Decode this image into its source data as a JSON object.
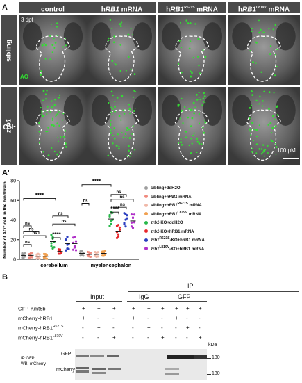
{
  "panelA": {
    "letter": "A",
    "columns": [
      {
        "pre": "",
        "italic": "",
        "sup": "",
        "post": "control"
      },
      {
        "pre": "h",
        "italic": "RB1",
        "sup": "",
        "post": " mRNA"
      },
      {
        "pre": "h",
        "italic": "RB1",
        "sup": "R621S",
        "post": " mRNA"
      },
      {
        "pre": "h",
        "italic": "RB1",
        "sup": "L819V",
        "post": " mRNA"
      }
    ],
    "rows": [
      {
        "italic": "",
        "post": "sibling"
      },
      {
        "italic": "zrb1",
        "post": "-KO"
      }
    ],
    "stage": "3 dpf",
    "stain": "AO",
    "scalebar": "100 μM",
    "colors": {
      "header_bg": "#4a4a4a",
      "ao_green": "#33dd33"
    }
  },
  "panelA2": {
    "letter": "A'",
    "chart_data": {
      "type": "scatter",
      "ylabel": "Number of AO⁺ cell  in the hindbrain",
      "ylim": [
        0,
        80
      ],
      "yticks": [
        0,
        20,
        40,
        60,
        80
      ],
      "categories": [
        "cerebellum",
        "myelencephalon"
      ],
      "significance": [
        {
          "label": "****"
        },
        {
          "label": "ns"
        },
        {
          "label": "ns"
        },
        {
          "label": "ns"
        },
        {
          "label": "****"
        },
        {
          "label": "ns"
        },
        {
          "label": "ns"
        },
        {
          "label": "ns"
        },
        {
          "label": "****"
        },
        {
          "label": "ns"
        },
        {
          "label": "****"
        },
        {
          "label": "ns"
        },
        {
          "label": "ns"
        },
        {
          "label": "ns"
        }
      ],
      "series": [
        {
          "name": "sibling+ddH2O",
          "name_pre": "sibling+ddH2O",
          "name_sup": "",
          "name_post": "",
          "color": "#9e9e9e",
          "values": [
            4,
            6
          ]
        },
        {
          "name": "sibling+hRB1 mRNA",
          "name_pre": "sibling+h",
          "name_it": "RB1",
          "name_sup": "",
          "name_post": " mRNA",
          "color": "#f08a7e",
          "values": [
            4,
            5
          ]
        },
        {
          "name": "sibling+hRB1R621S mRNA",
          "name_pre": "sibling+h",
          "name_it": "RB1",
          "name_sup": "R621S",
          "name_post": " mRNA",
          "color": "#f0b8a8",
          "values": [
            3,
            5
          ]
        },
        {
          "name": "sibling+hRB1L819V mRNA",
          "name_pre": "sibling+h",
          "name_it": "RB1",
          "name_sup": "L819V",
          "name_post": " mRNA",
          "color": "#f0a050",
          "values": [
            3,
            6
          ]
        },
        {
          "name": "zrb1-KO+ddH2O",
          "name_pre": "",
          "name_it": "zrb1",
          "name_sup": "",
          "name_post": "-KO+ddH2O",
          "color": "#27b84a",
          "values": [
            18,
            41
          ]
        },
        {
          "name": "zrb1-KO+hRB1 mRNA",
          "name_pre": "",
          "name_it": "zrb1",
          "name_sup": "",
          "name_post": "-KO+hRB1 mRNA",
          "color": "#e8262a",
          "values": [
            8,
            28
          ]
        },
        {
          "name": "zrb1-KO+hRB1R621S mRNA",
          "name_pre": "",
          "name_it": "zrb1",
          "name_sup": "R621S",
          "name_post": "-KO+hRB1 mRNA",
          "color": "#2a3ec0",
          "values": [
            16,
            40
          ]
        },
        {
          "name": "zrb1-KO+hRB1L819V mRNA",
          "name_pre": "",
          "name_it": "zrb1",
          "name_sup": "L819V",
          "name_post": "-KO+hRB1 mRNA",
          "color": "#b030c8",
          "values": [
            16,
            39
          ]
        }
      ]
    }
  },
  "panelB": {
    "letter": "B",
    "ip_label": "IP",
    "input_label": "Input",
    "igg_label": "IgG",
    "gfp_label": "GFP",
    "rows": [
      {
        "label": "GFP-Kmt5b",
        "sup": "",
        "signs": [
          "+",
          "+",
          "+",
          "+",
          "+",
          "+",
          "+",
          "+",
          "+"
        ]
      },
      {
        "label": "mCherry-hRB1",
        "sup": "",
        "signs": [
          "+",
          "-",
          "-",
          "+",
          "-",
          "-",
          "+",
          "-",
          "-"
        ]
      },
      {
        "label": "mCherry-hRB1",
        "sup": "R621S",
        "signs": [
          "-",
          "+",
          "-",
          "-",
          "+",
          "-",
          "-",
          "+",
          "-"
        ]
      },
      {
        "label": "mCherry-hRB1",
        "sup": "L819V",
        "signs": [
          "-",
          "-",
          "+",
          "-",
          "-",
          "+",
          "-",
          "-",
          "+"
        ]
      }
    ],
    "kda": "kDa",
    "blot_gfp": "GFP",
    "blot_mcherry": "mCherry",
    "mw_top": "130",
    "mw_bottom": "130",
    "ipwb_line1": "IP:GFP",
    "ipwb_line2": "WB: mCherry"
  }
}
